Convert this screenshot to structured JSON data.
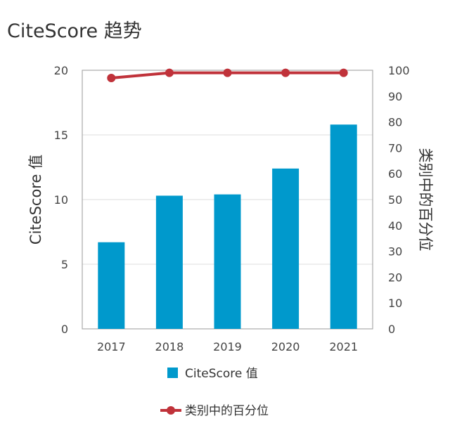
{
  "title": "CiteScore 趋势",
  "chart_data": {
    "type": "bar",
    "categories": [
      "2017",
      "2018",
      "2019",
      "2020",
      "2021"
    ],
    "series": [
      {
        "name": "CiteScore 值",
        "type": "bar",
        "axis": "left",
        "color": "#0099cc",
        "values": [
          6.7,
          10.3,
          10.4,
          12.4,
          15.8
        ]
      },
      {
        "name": "类别中的百分位",
        "type": "line",
        "axis": "right",
        "color": "#c0323a",
        "values": [
          97,
          99,
          99,
          99,
          99
        ]
      }
    ],
    "ylabel": "CiteScore 值",
    "y2label": "类别中的百分位",
    "ylim": [
      0,
      20
    ],
    "y2lim": [
      0,
      100
    ],
    "yticks": [
      "0",
      "5",
      "10",
      "15",
      "20"
    ],
    "y2ticks": [
      "0",
      "10",
      "20",
      "30",
      "40",
      "50",
      "60",
      "70",
      "80",
      "90",
      "100"
    ],
    "grid": true,
    "legend": "bottom"
  }
}
